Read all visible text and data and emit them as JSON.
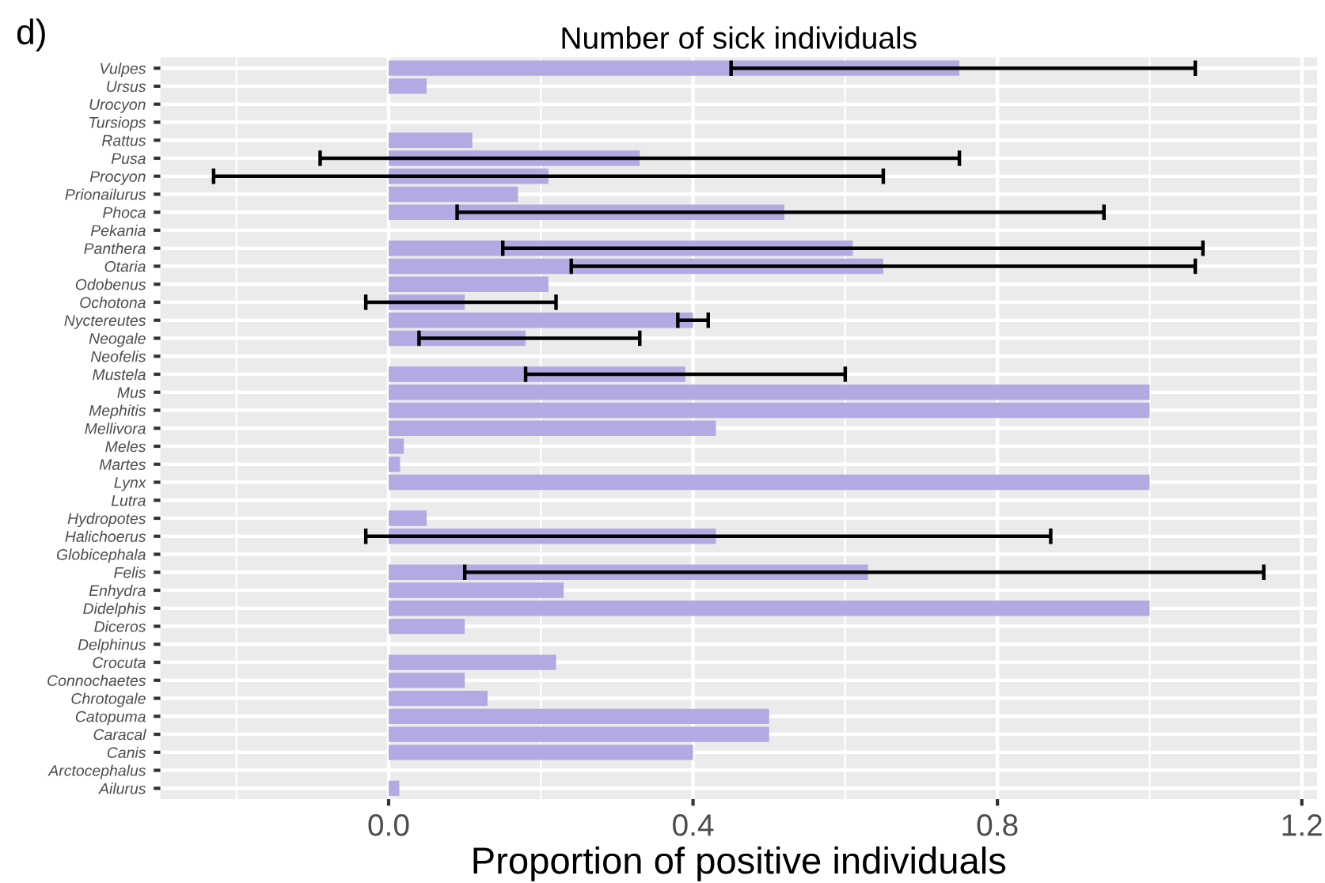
{
  "chart_data": {
    "type": "bar",
    "orientation": "horizontal",
    "title": "Number of sick individuals",
    "xlabel": "Proportion of positive individuals",
    "annotations": [
      "d)"
    ],
    "categories": [
      "Vulpes",
      "Ursus",
      "Urocyon",
      "Tursiops",
      "Rattus",
      "Pusa",
      "Procyon",
      "Prionailurus",
      "Phoca",
      "Pekania",
      "Panthera",
      "Otaria",
      "Odobenus",
      "Ochotona",
      "Nyctereutes",
      "Neogale",
      "Neofelis",
      "Mustela",
      "Mus",
      "Mephitis",
      "Mellivora",
      "Meles",
      "Martes",
      "Lynx",
      "Lutra",
      "Hydropotes",
      "Halichoerus",
      "Globicephala",
      "Felis",
      "Enhydra",
      "Didelphis",
      "Diceros",
      "Delphinus",
      "Crocuta",
      "Connochaetes",
      "Chrotogale",
      "Catopuma",
      "Caracal",
      "Canis",
      "Arctocephalus",
      "Ailurus"
    ],
    "values": [
      0.75,
      0.05,
      0,
      0,
      0.11,
      0.33,
      0.21,
      0.17,
      0.52,
      0,
      0.61,
      0.65,
      0.21,
      0.1,
      0.4,
      0.18,
      0,
      0.39,
      1.0,
      1.0,
      0.43,
      0.02,
      0.015,
      1.0,
      0,
      0.05,
      0.43,
      0,
      0.63,
      0.23,
      1.0,
      0.1,
      0,
      0.22,
      0.1,
      0.13,
      0.5,
      0.5,
      0.4,
      0,
      0.014
    ],
    "errors": [
      [
        0.45,
        1.06
      ],
      null,
      null,
      null,
      null,
      [
        -0.09,
        0.75
      ],
      [
        -0.23,
        0.65
      ],
      null,
      [
        0.09,
        0.94
      ],
      null,
      [
        0.15,
        1.07
      ],
      [
        0.24,
        1.06
      ],
      null,
      [
        -0.03,
        0.22
      ],
      [
        0.38,
        0.42
      ],
      [
        0.04,
        0.33
      ],
      null,
      [
        0.18,
        0.6
      ],
      null,
      null,
      null,
      null,
      null,
      null,
      null,
      null,
      [
        -0.03,
        0.87
      ],
      null,
      [
        0.1,
        1.15
      ],
      null,
      null,
      null,
      null,
      null,
      null,
      null,
      null,
      null,
      null,
      null,
      null
    ],
    "color": "#b3aae3",
    "xlim": [
      -0.3,
      1.22
    ],
    "xticks": [
      {
        "value": 0,
        "label": "0.0"
      },
      0.4,
      0.8,
      1.2
    ],
    "grid": true
  }
}
